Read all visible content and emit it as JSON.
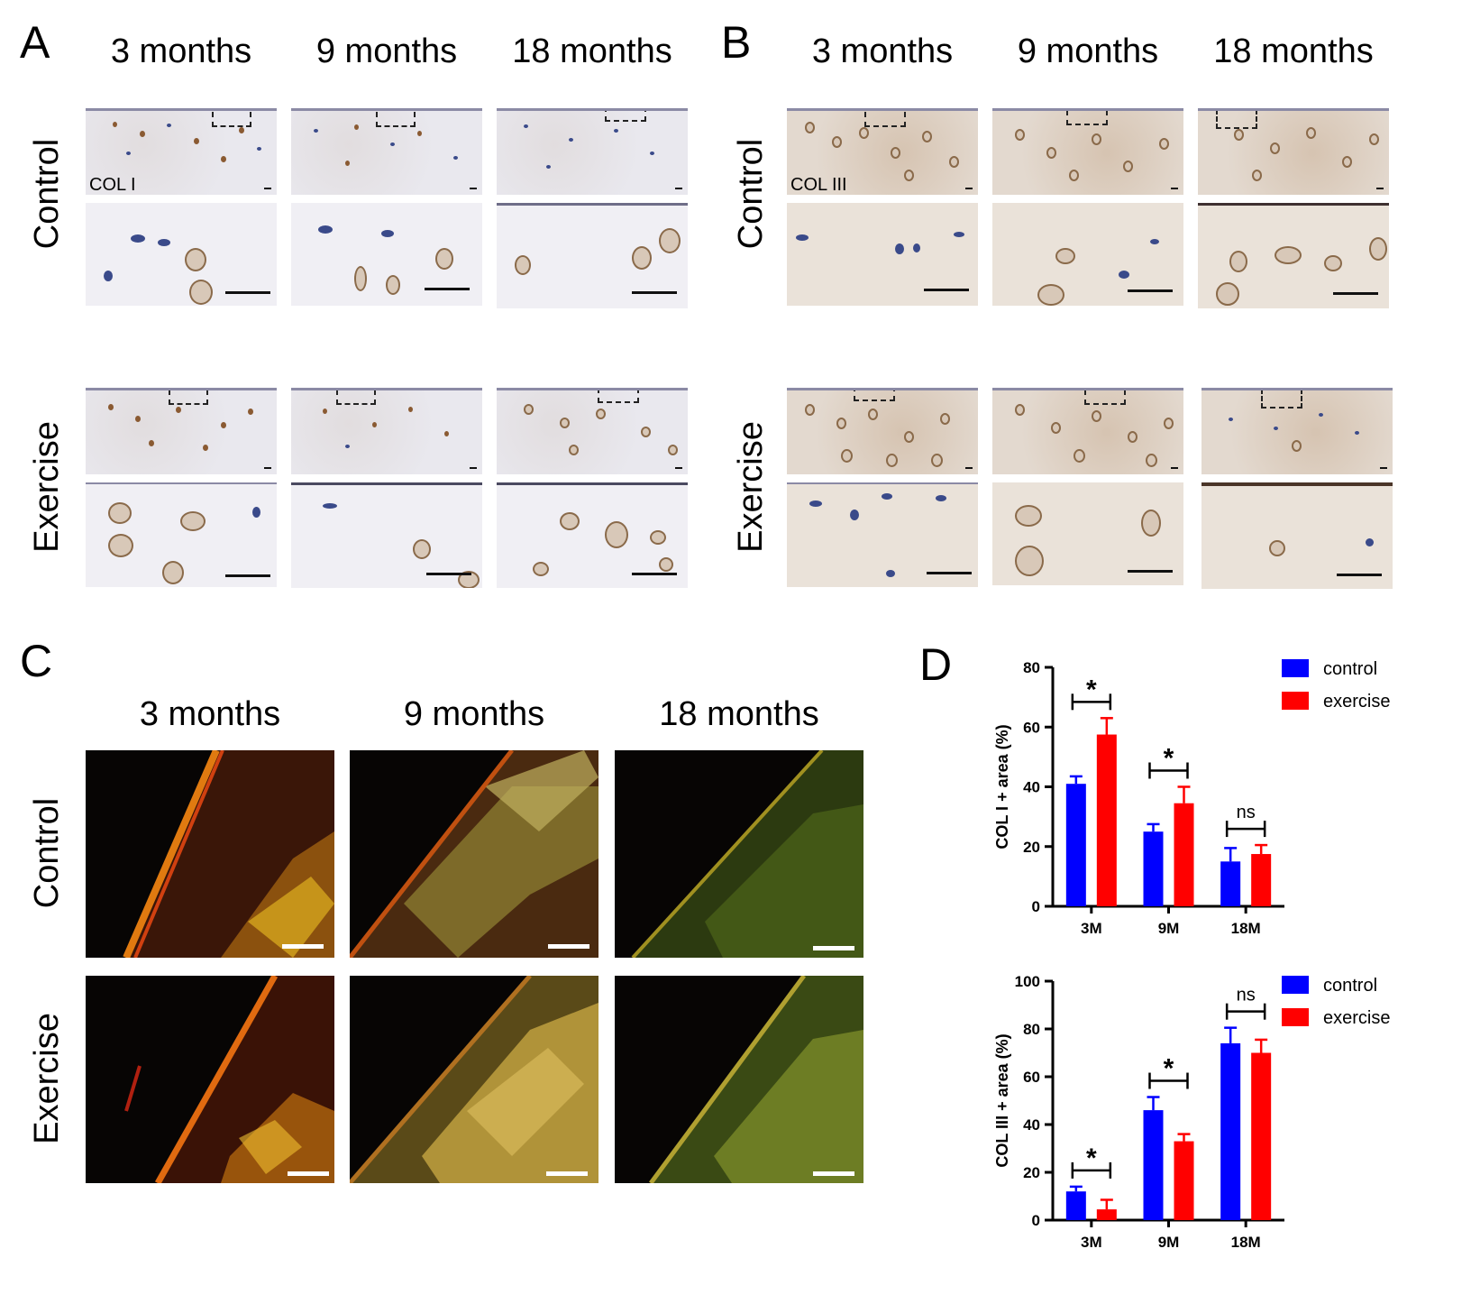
{
  "panels": {
    "A": {
      "letter": "A",
      "col_labels": [
        "3 months",
        "9 months",
        "18 months"
      ],
      "row_labels": [
        "Control",
        "Exercise"
      ],
      "stain_tag": "COL I"
    },
    "B": {
      "letter": "B",
      "col_labels": [
        "3 months",
        "9 months",
        "18 months"
      ],
      "row_labels": [
        "Control",
        "Exercise"
      ],
      "stain_tag": "COL III"
    },
    "C": {
      "letter": "C",
      "col_labels": [
        "3 months",
        "9 months",
        "18 months"
      ],
      "row_labels": [
        "Control",
        "Exercise"
      ]
    },
    "D": {
      "letter": "D"
    }
  },
  "colors": {
    "control": "#0000ff",
    "exercise": "#ff0000"
  },
  "chart_data": [
    {
      "type": "bar",
      "ylabel": "COL I + area (%)",
      "categories": [
        "3M",
        "9M",
        "18M"
      ],
      "ylim": [
        0,
        80
      ],
      "yticks": [
        0,
        20,
        40,
        60,
        80
      ],
      "legend": "top-right",
      "series": [
        {
          "name": "control",
          "values": [
            41,
            25,
            15
          ],
          "errors": [
            2.5,
            2.5,
            4.5
          ]
        },
        {
          "name": "exercise",
          "values": [
            57.5,
            34.5,
            17.5
          ],
          "errors": [
            5.5,
            5.5,
            3
          ]
        }
      ],
      "significance": [
        "*",
        "*",
        "ns"
      ]
    },
    {
      "type": "bar",
      "ylabel": "COL III + area (%)",
      "categories": [
        "3M",
        "9M",
        "18M"
      ],
      "ylim": [
        0,
        100
      ],
      "yticks": [
        0,
        20,
        40,
        60,
        80,
        100
      ],
      "legend": "top-right",
      "series": [
        {
          "name": "control",
          "values": [
            12,
            46,
            74
          ],
          "errors": [
            2,
            5.5,
            6.5
          ]
        },
        {
          "name": "exercise",
          "values": [
            4.5,
            33,
            70
          ],
          "errors": [
            4,
            3,
            5.5
          ]
        }
      ],
      "significance": [
        "*",
        "*",
        "ns"
      ]
    }
  ]
}
